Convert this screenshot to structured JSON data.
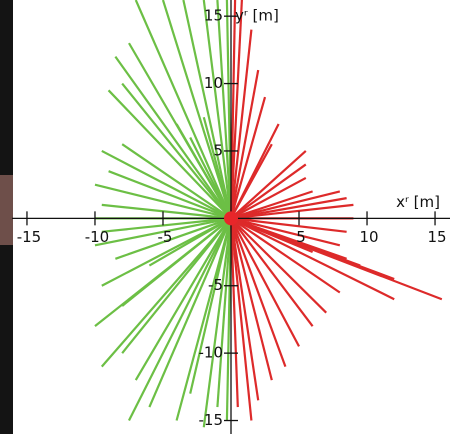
{
  "chart_data": {
    "type": "ray",
    "xlabel": "xʳ [m]",
    "ylabel": "yʳ [m]",
    "xlim": [
      -16.1,
      16.1
    ],
    "ylim": [
      -16,
      16.2
    ],
    "xticks": [
      -15,
      -10,
      -5,
      5,
      10,
      15
    ],
    "yticks": [
      -15,
      -10,
      -5,
      5,
      10,
      15
    ],
    "origin_color": "#e8262a",
    "series": [
      {
        "color": "#6cbf45",
        "x": [
          -0.3,
          -1,
          -2,
          -3.5,
          -5,
          -7,
          -7.5,
          -8.5,
          -8,
          -9,
          -4,
          -2,
          -3,
          -8,
          -9.5,
          -9,
          -10,
          -9.5,
          -10,
          -9.5,
          -10,
          -8.5,
          -6,
          -9.5,
          -8,
          -10,
          -8,
          -9.5,
          -7,
          -6,
          -7.5,
          -4,
          -3,
          -2,
          -1,
          -0.3
        ],
        "values": [
          16.2,
          16.2,
          16.2,
          16.2,
          16.2,
          16.2,
          13,
          12,
          10,
          9.5,
          7,
          7.5,
          6,
          5.5,
          5,
          3.5,
          2.5,
          1,
          0,
          -1,
          -2,
          -3,
          -3.5,
          -5,
          -6.5,
          -8,
          -10,
          -11,
          -12,
          -14,
          -15,
          -15,
          -13,
          -15.5,
          -14,
          -15
        ]
      },
      {
        "color": "#dd2a2a",
        "x": [
          0.3,
          0.8,
          1.5,
          2,
          2.5,
          3.5,
          3,
          5.5,
          5.5,
          5.5,
          6,
          8,
          8.5,
          9,
          9,
          8.5,
          8,
          6,
          8.5,
          9.5,
          12,
          15.5,
          12,
          8,
          7,
          6,
          5,
          4,
          3,
          2,
          1.5,
          0.5
        ],
        "values": [
          16.2,
          16.2,
          14,
          11,
          9,
          7,
          5.5,
          5,
          4,
          3,
          2,
          2,
          1.5,
          1,
          0,
          -1,
          -2,
          -2.5,
          -3,
          -3.5,
          -4.5,
          -6,
          -6,
          -5.5,
          -7,
          -8,
          -9.5,
          -11,
          -12,
          -13.5,
          -15,
          -14
        ]
      }
    ]
  }
}
